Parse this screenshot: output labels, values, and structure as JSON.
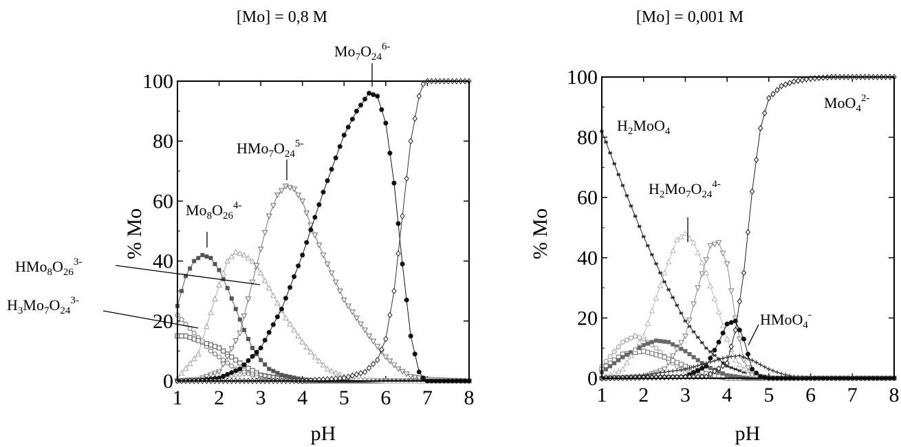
{
  "chart_data": [
    {
      "type": "line",
      "title": "[Mo] = 0,8 M",
      "xlabel": "pH",
      "ylabel": "% Mo",
      "xlim": [
        1,
        8
      ],
      "ylim": [
        0,
        100
      ],
      "xticks": [
        "1",
        "2",
        "3",
        "4",
        "5",
        "6",
        "7",
        "8"
      ],
      "yticks": [
        "0",
        "20",
        "40",
        "60",
        "80",
        "100"
      ],
      "grid": false,
      "series": [
        {
          "name": "H3Mo7O24 3-",
          "marker": "open-circle",
          "color": "#777777",
          "x": [
            1,
            1.2,
            1.4,
            1.6,
            1.8,
            2,
            2.2,
            2.4,
            2.6,
            2.8,
            3,
            3.5,
            4,
            5,
            8
          ],
          "y": [
            22,
            19,
            16,
            13,
            10,
            8,
            6,
            4,
            3,
            2,
            1,
            0.3,
            0,
            0,
            0
          ]
        },
        {
          "name": "HMo8O26 3-",
          "marker": "open-square",
          "color": "#555555",
          "x": [
            1,
            1.2,
            1.4,
            1.6,
            1.8,
            2,
            2.2,
            2.4,
            2.6,
            2.8,
            3,
            3.5,
            4,
            5,
            8
          ],
          "y": [
            15,
            15,
            14,
            13,
            12,
            11,
            9,
            7,
            5,
            3.5,
            2,
            0.8,
            0,
            0,
            0
          ]
        },
        {
          "name": "H2Mo7O24 4-",
          "marker": "small-open-circle",
          "color": "#999999",
          "x": [
            1,
            1.5,
            2,
            2.5,
            2.8,
            3,
            3.5,
            4,
            5,
            8
          ],
          "y": [
            0,
            0.5,
            1,
            2,
            2.5,
            2,
            0.8,
            0.3,
            0,
            0
          ]
        },
        {
          "name": "Mo8O26 4-",
          "marker": "filled-square",
          "color": "#555555",
          "x": [
            1,
            1.2,
            1.4,
            1.6,
            1.8,
            2,
            2.2,
            2.4,
            2.6,
            2.8,
            3,
            3.2,
            3.5,
            4,
            4.5,
            5,
            8
          ],
          "y": [
            25,
            35,
            40,
            42,
            41,
            37,
            31,
            24,
            17,
            11,
            7,
            4,
            2,
            0.5,
            0,
            0,
            0
          ]
        },
        {
          "name": "H2Mo7O24 4-",
          "marker": "open-triangle-up",
          "color": "#aaaaaa",
          "x": [
            1,
            1.5,
            2,
            2.2,
            2.4,
            2.6,
            2.8,
            3,
            3.2,
            3.4,
            3.6,
            3.8,
            4,
            4.3,
            4.6,
            5,
            5.5,
            6,
            8
          ],
          "y": [
            1,
            9,
            32,
            40,
            43,
            42,
            40,
            36,
            31,
            26,
            21,
            17,
            13,
            8,
            4,
            1.5,
            0.5,
            0,
            0
          ]
        },
        {
          "name": "HMo7O24 5-",
          "marker": "open-triangle-down",
          "color": "#777777",
          "x": [
            1,
            1.5,
            2,
            2.5,
            2.8,
            3,
            3.2,
            3.4,
            3.6,
            3.8,
            4,
            4.2,
            4.5,
            4.8,
            5,
            5.3,
            5.6,
            6,
            6.3,
            6.6,
            7,
            8
          ],
          "y": [
            0,
            0.5,
            3,
            16,
            33,
            44,
            55,
            62,
            65,
            64,
            60,
            52,
            42,
            33,
            27,
            21,
            15,
            8,
            4,
            1.5,
            0.5,
            0
          ]
        },
        {
          "name": "Mo7O24 6-",
          "marker": "filled-circle",
          "color": "#111111",
          "x": [
            1,
            1.5,
            2,
            2.5,
            3,
            3.5,
            4,
            4.5,
            5,
            5.3,
            5.6,
            5.8,
            6,
            6.2,
            6.4,
            6.6,
            6.8,
            6.9,
            7,
            8
          ],
          "y": [
            0,
            0.2,
            1,
            4,
            11,
            24,
            42,
            63,
            82,
            90,
            96,
            95,
            86,
            66,
            39,
            15,
            3,
            1,
            0,
            0
          ]
        },
        {
          "name": "MoO4 2-",
          "marker": "open-diamond",
          "color": "#333333",
          "x": [
            1,
            4,
            5,
            5.5,
            5.8,
            6,
            6.2,
            6.4,
            6.6,
            6.8,
            6.9,
            7,
            8
          ],
          "y": [
            0,
            0,
            1,
            3,
            7,
            14,
            30,
            55,
            80,
            95,
            99,
            100,
            100
          ]
        }
      ],
      "annotations": [
        "Mo7O24 6-",
        "HMo7O24 5-",
        "Mo8O26 4-",
        "HMo8O26 3-",
        "H3Mo7O24 3-"
      ]
    },
    {
      "type": "line",
      "title": "[Mo] = 0,001 M",
      "xlabel": "pH",
      "ylabel": "% Mo",
      "xlim": [
        1,
        8
      ],
      "ylim": [
        0,
        100
      ],
      "xticks": [
        "1",
        "2",
        "3",
        "4",
        "5",
        "6",
        "7",
        "8"
      ],
      "yticks": [
        "0",
        "20",
        "40",
        "60",
        "80",
        "100"
      ],
      "grid": false,
      "series": [
        {
          "name": "H2MoO4",
          "marker": "asterisk",
          "color": "#222222",
          "x": [
            1,
            1.5,
            2,
            2.5,
            3,
            3.5,
            4,
            4.5,
            5,
            5.5,
            6,
            8
          ],
          "y": [
            82,
            64,
            47,
            32,
            19,
            10,
            4,
            1.5,
            0.5,
            0,
            0,
            0
          ]
        },
        {
          "name": "H3Mo7O24 3-",
          "marker": "open-circle",
          "color": "#999999",
          "x": [
            1,
            1.5,
            1.8,
            2,
            2.3,
            2.6,
            3,
            3.5,
            4,
            8
          ],
          "y": [
            4,
            12,
            14,
            13,
            10,
            6,
            2,
            0.5,
            0,
            0
          ]
        },
        {
          "name": "HMo8O26 3-",
          "marker": "open-square",
          "color": "#777777",
          "x": [
            1,
            1.5,
            2,
            2.5,
            3,
            3.5,
            4,
            8
          ],
          "y": [
            3,
            8,
            9,
            7,
            4,
            1.5,
            0,
            0
          ]
        },
        {
          "name": "Mo8O26 4-",
          "marker": "filled-square",
          "color": "#666666",
          "x": [
            1,
            1.5,
            2,
            2.3,
            2.6,
            3,
            3.5,
            4,
            4.5,
            8
          ],
          "y": [
            2,
            7,
            11,
            12.5,
            12,
            9,
            4,
            1,
            0,
            0
          ]
        },
        {
          "name": "H2Mo7O24 4-",
          "marker": "open-triangle-up",
          "color": "#bbbbbb",
          "x": [
            1,
            1.5,
            2,
            2.5,
            2.8,
            3,
            3.2,
            3.5,
            3.8,
            4,
            4.2,
            4.5,
            5,
            8
          ],
          "y": [
            0,
            3,
            14,
            35,
            46,
            48,
            45,
            35,
            22,
            13,
            6,
            1.5,
            0,
            0
          ]
        },
        {
          "name": "HMo7O24 5-",
          "marker": "open-triangle-down",
          "color": "#888888",
          "x": [
            1,
            2,
            2.5,
            3,
            3.3,
            3.6,
            3.8,
            4,
            4.2,
            4.4,
            4.6,
            5,
            8
          ],
          "y": [
            0,
            0.5,
            3,
            14,
            30,
            44,
            45,
            38,
            20,
            6,
            1,
            0,
            0
          ]
        },
        {
          "name": "Mo7O24 6-",
          "marker": "filled-circle",
          "color": "#111111",
          "x": [
            1,
            3,
            3.5,
            3.8,
            4,
            4.2,
            4.4,
            4.6,
            4.8,
            5,
            8
          ],
          "y": [
            0,
            0.5,
            4,
            12,
            18,
            19,
            13,
            3,
            0.5,
            0,
            0
          ]
        },
        {
          "name": "HMoO4 -",
          "marker": "plus",
          "color": "#333333",
          "x": [
            1,
            2,
            3,
            3.5,
            4,
            4.3,
            4.6,
            5,
            5.3,
            5.6,
            6,
            8
          ],
          "y": [
            0,
            1,
            3,
            5,
            7,
            7.5,
            6,
            3,
            1.5,
            0.5,
            0,
            0
          ]
        },
        {
          "name": "MoO4 2-",
          "marker": "open-diamond",
          "color": "#222222",
          "x": [
            1,
            3.5,
            4,
            4.2,
            4.4,
            4.6,
            4.8,
            5,
            5.3,
            5.6,
            6,
            6.5,
            7,
            8
          ],
          "y": [
            0,
            0.5,
            5,
            16,
            35,
            62,
            83,
            93,
            97,
            98.5,
            99.5,
            100,
            100,
            100
          ]
        }
      ],
      "annotations": [
        "H2MoO4",
        "H2Mo7O24 4-",
        "HMoO4 -",
        "MoO4 2-"
      ]
    }
  ],
  "labels": {
    "left": {
      "mo7": {
        "base": "Mo",
        "s1": "7",
        "mid": "O",
        "s2": "24",
        "sup": "6-"
      },
      "hmo7": {
        "base": "HMo",
        "s1": "7",
        "mid": "O",
        "s2": "24",
        "sup": "5-"
      },
      "mo8": {
        "base": "Mo",
        "s1": "8",
        "mid": "O",
        "s2": "26",
        "sup": "4-"
      },
      "hmo8": {
        "base": "HMo",
        "s1": "8",
        "mid": "O",
        "s2": "26",
        "sup": "3-"
      },
      "h3mo7": {
        "pre": "H",
        "s0": "3",
        "base": "Mo",
        "s1": "7",
        "mid": "O",
        "s2": "24",
        "sup": "3-"
      }
    },
    "right": {
      "h2moo4": {
        "pre": "H",
        "s0": "2",
        "base": "MoO",
        "s1": "4"
      },
      "h2mo7": {
        "pre": "H",
        "s0": "2",
        "base": "Mo",
        "s1": "7",
        "mid": "O",
        "s2": "24",
        "sup": "4-"
      },
      "hmoo4": {
        "base": "HMoO",
        "s1": "4",
        "sup": "-"
      },
      "moo4": {
        "base": "MoO",
        "s1": "4",
        "sup": "2-"
      }
    }
  }
}
